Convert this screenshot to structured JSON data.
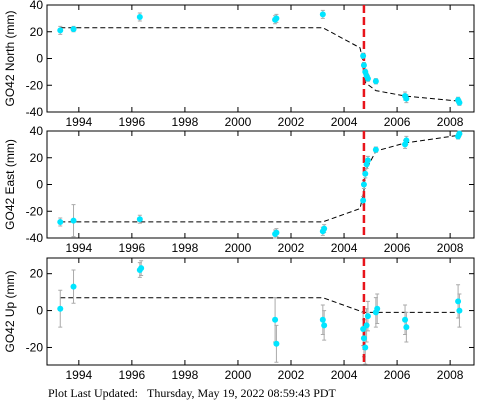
{
  "chart_data": [
    {
      "type": "scatter",
      "ylabel": "GO42 North (mm)",
      "color": "#00e5ff",
      "x": [
        1993.3,
        1993.8,
        1996.3,
        2001.4,
        2001.45,
        2003.2,
        2004.72,
        2004.75,
        2004.8,
        2004.85,
        2004.9,
        2005.2,
        2006.3,
        2006.35,
        2008.3,
        2008.35
      ],
      "values": [
        21,
        22,
        31,
        29,
        30,
        33,
        2,
        -5,
        -10,
        -13,
        -15,
        -17,
        -28,
        -30,
        -31,
        -33
      ],
      "errors": [
        3,
        2,
        3,
        3,
        3,
        3,
        2,
        2,
        2,
        2,
        2,
        2,
        3,
        3,
        2,
        2
      ],
      "fit": {
        "color": "#000000",
        "x": [
          1993.3,
          2003.2,
          2004.6,
          2004.75,
          2004.8,
          2005.2,
          2006.3,
          2008.4
        ],
        "values": [
          23,
          23,
          8,
          -5,
          -18,
          -24,
          -28,
          -32
        ]
      },
      "event_x": 2004.75,
      "event_color": "#e8141b",
      "xlim": [
        1992.8,
        2008.9
      ],
      "xticks": [
        1994,
        1996,
        1998,
        2000,
        2002,
        2004,
        2006,
        2008
      ],
      "ylim": [
        -40,
        40
      ],
      "yticks": [
        -40,
        -20,
        0,
        20,
        40
      ]
    },
    {
      "type": "scatter",
      "ylabel": "GO42 East (mm)",
      "color": "#00e5ff",
      "x": [
        1993.3,
        1993.8,
        1996.3,
        2001.4,
        2001.45,
        2003.2,
        2003.25,
        2004.72,
        2004.75,
        2004.8,
        2004.85,
        2004.9,
        2005.2,
        2006.3,
        2006.35,
        2008.3,
        2008.35
      ],
      "values": [
        -28,
        -27,
        -26,
        -37,
        -36,
        -35,
        -33,
        -12,
        0,
        8,
        15,
        18,
        26,
        30,
        33,
        36,
        38
      ],
      "errors": [
        3,
        12,
        3,
        3,
        3,
        3,
        3,
        3,
        3,
        3,
        3,
        3,
        2,
        3,
        3,
        2,
        2
      ],
      "fit": {
        "color": "#000000",
        "x": [
          1993.3,
          2003.2,
          2004.6,
          2004.75,
          2004.8,
          2005.2,
          2006.3,
          2008.4
        ],
        "values": [
          -28,
          -28,
          -18,
          -5,
          10,
          25,
          31,
          37
        ]
      },
      "event_x": 2004.75,
      "event_color": "#e8141b",
      "xlim": [
        1992.8,
        2008.9
      ],
      "xticks": [
        1994,
        1996,
        1998,
        2000,
        2002,
        2004,
        2006,
        2008
      ],
      "ylim": [
        -40,
        40
      ],
      "yticks": [
        -40,
        -20,
        0,
        20,
        40
      ]
    },
    {
      "type": "scatter",
      "ylabel": "GO42 Up (mm)",
      "color": "#00e5ff",
      "x": [
        1993.3,
        1993.8,
        1996.3,
        1996.35,
        2001.4,
        2001.45,
        2003.2,
        2003.25,
        2004.72,
        2004.75,
        2004.8,
        2004.85,
        2004.9,
        2005.2,
        2005.25,
        2006.3,
        2006.35,
        2008.3,
        2008.35
      ],
      "values": [
        1,
        13,
        22,
        23,
        -5,
        -18,
        -5,
        -8,
        -10,
        -15,
        -20,
        -8,
        -3,
        -1,
        1,
        -5,
        -9,
        5,
        0
      ],
      "errors": [
        10,
        9,
        4,
        4,
        12,
        10,
        8,
        8,
        9,
        10,
        9,
        9,
        8,
        8,
        8,
        8,
        8,
        9,
        9
      ],
      "fit": {
        "color": "#000000",
        "x": [
          1993.3,
          2003.2,
          2004.75,
          2008.4
        ],
        "values": [
          7,
          7,
          -1,
          -1
        ]
      },
      "event_x": 2004.75,
      "event_color": "#e8141b",
      "xlim": [
        1992.8,
        2008.9
      ],
      "xticks": [
        1994,
        1996,
        1998,
        2000,
        2002,
        2004,
        2006,
        2008
      ],
      "ylim": [
        -29.5,
        28.5
      ],
      "yticks": [
        -20,
        0,
        20
      ]
    }
  ],
  "footer": {
    "label": "Plot Last Updated:",
    "value": "Thursday, May 19, 2022 08:59:43 PDT"
  }
}
